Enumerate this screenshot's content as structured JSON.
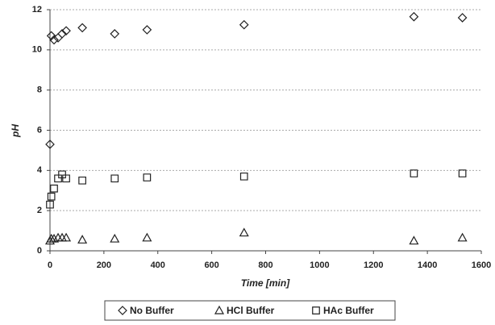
{
  "chart_data": {
    "type": "scatter",
    "xlabel": "Time [min]",
    "ylabel": "pH",
    "x": [
      0,
      5,
      15,
      30,
      45,
      60,
      120,
      240,
      360,
      720,
      1350,
      1530
    ],
    "series": [
      {
        "name": "No Buffer",
        "color": "#222222",
        "marker": "diamond",
        "values": [
          5.3,
          10.7,
          10.5,
          10.6,
          10.8,
          10.95,
          11.1,
          10.8,
          11.0,
          11.25,
          11.65,
          11.6
        ]
      },
      {
        "name": "HCl Buffer",
        "color": "#222222",
        "marker": "triangle",
        "values": [
          0.5,
          0.6,
          0.6,
          0.65,
          0.65,
          0.65,
          0.55,
          0.6,
          0.65,
          0.9,
          0.5,
          0.65
        ]
      },
      {
        "name": "HAc Buffer",
        "color": "#222222",
        "marker": "square",
        "values": [
          2.3,
          2.7,
          3.1,
          3.6,
          3.8,
          3.6,
          3.5,
          3.6,
          3.65,
          3.7,
          3.85,
          3.85
        ]
      }
    ],
    "xlim": [
      0,
      1600
    ],
    "xticks": [
      0,
      200,
      400,
      600,
      800,
      1000,
      1200,
      1400,
      1600
    ],
    "ylim": [
      0,
      12
    ],
    "yticks": [
      0,
      2,
      4,
      6,
      8,
      10,
      12
    ],
    "grid": true,
    "legend": "bottom"
  }
}
